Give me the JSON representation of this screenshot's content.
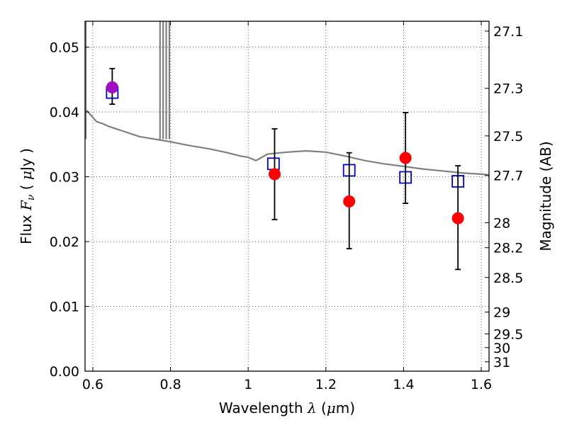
{
  "chart_data": {
    "type": "scatter",
    "title": "",
    "xlabel": {
      "prefix": "Wavelength  ",
      "symbol": "λ",
      "unit_open": " (",
      "unit_mu": "μ",
      "unit_close": "m)"
    },
    "ylabel": {
      "prefix": "Flux  ",
      "symbol": "F",
      "subscript": "ν",
      "unit_open": "  ( ",
      "unit_mu": "μ",
      "unit_close": "Jy )"
    },
    "y2label": "Magnitude (AB)",
    "xlim": [
      0.58,
      1.62
    ],
    "ylim": [
      0.0,
      0.054
    ],
    "grid": true,
    "x_ticks": [
      0.6,
      0.8,
      1.0,
      1.2,
      1.4,
      1.6
    ],
    "x_tick_labels": [
      "0.6",
      "0.8",
      "1",
      "1.2",
      "1.4",
      "1.6"
    ],
    "y_ticks": [
      0.0,
      0.01,
      0.02,
      0.03,
      0.04,
      0.05
    ],
    "y_tick_labels": [
      "0.00",
      "0.01",
      "0.02",
      "0.03",
      "0.04",
      "0.05"
    ],
    "y2_ticks": [
      "27.1",
      "27.3",
      "27.5",
      "27.7",
      "28",
      "28.2",
      "28.5",
      "29",
      "29.5",
      "30",
      "31"
    ],
    "spectrum": {
      "color": "#808080",
      "points": [
        [
          0.58,
          0.0405
        ],
        [
          0.595,
          0.0395
        ],
        [
          0.61,
          0.0385
        ],
        [
          0.625,
          0.0382
        ],
        [
          0.64,
          0.0378
        ],
        [
          0.66,
          0.0374
        ],
        [
          0.68,
          0.037
        ],
        [
          0.7,
          0.0366
        ],
        [
          0.72,
          0.0362
        ],
        [
          0.74,
          0.036
        ],
        [
          0.76,
          0.0358
        ],
        [
          0.8,
          0.0354
        ],
        [
          0.85,
          0.0348
        ],
        [
          0.9,
          0.0343
        ],
        [
          0.94,
          0.0338
        ],
        [
          0.96,
          0.0335
        ],
        [
          0.98,
          0.0332
        ],
        [
          1.0,
          0.033
        ],
        [
          1.02,
          0.0325
        ],
        [
          1.05,
          0.0335
        ],
        [
          1.1,
          0.0338
        ],
        [
          1.15,
          0.034
        ],
        [
          1.2,
          0.0338
        ],
        [
          1.25,
          0.0332
        ],
        [
          1.3,
          0.0325
        ],
        [
          1.35,
          0.032
        ],
        [
          1.4,
          0.0316
        ],
        [
          1.45,
          0.0312
        ],
        [
          1.5,
          0.0309
        ],
        [
          1.55,
          0.0306
        ],
        [
          1.6,
          0.0304
        ],
        [
          1.62,
          0.0303
        ]
      ],
      "vertical_spike_x": [
        0.582,
        0.773,
        0.781,
        0.789,
        0.797
      ]
    },
    "model_points": {
      "color": "#0000cc",
      "marker": "open-square",
      "points": [
        [
          0.65,
          0.043
        ],
        [
          1.065,
          0.032
        ],
        [
          1.26,
          0.031
        ],
        [
          1.405,
          0.0299
        ],
        [
          1.54,
          0.0293
        ]
      ]
    },
    "observed": {
      "color": "#ff0000",
      "marker": "filled-circle",
      "points": [
        {
          "x": 0.65,
          "y": 0.0438,
          "lo": 0.0412,
          "hi": 0.0467,
          "color": "#a010c0"
        },
        {
          "x": 1.068,
          "y": 0.0304,
          "lo": 0.0234,
          "hi": 0.0374
        },
        {
          "x": 1.26,
          "y": 0.0262,
          "lo": 0.0189,
          "hi": 0.0337
        },
        {
          "x": 1.405,
          "y": 0.0329,
          "lo": 0.0259,
          "hi": 0.0399
        },
        {
          "x": 1.54,
          "y": 0.0236,
          "lo": 0.0157,
          "hi": 0.0317
        }
      ]
    }
  }
}
